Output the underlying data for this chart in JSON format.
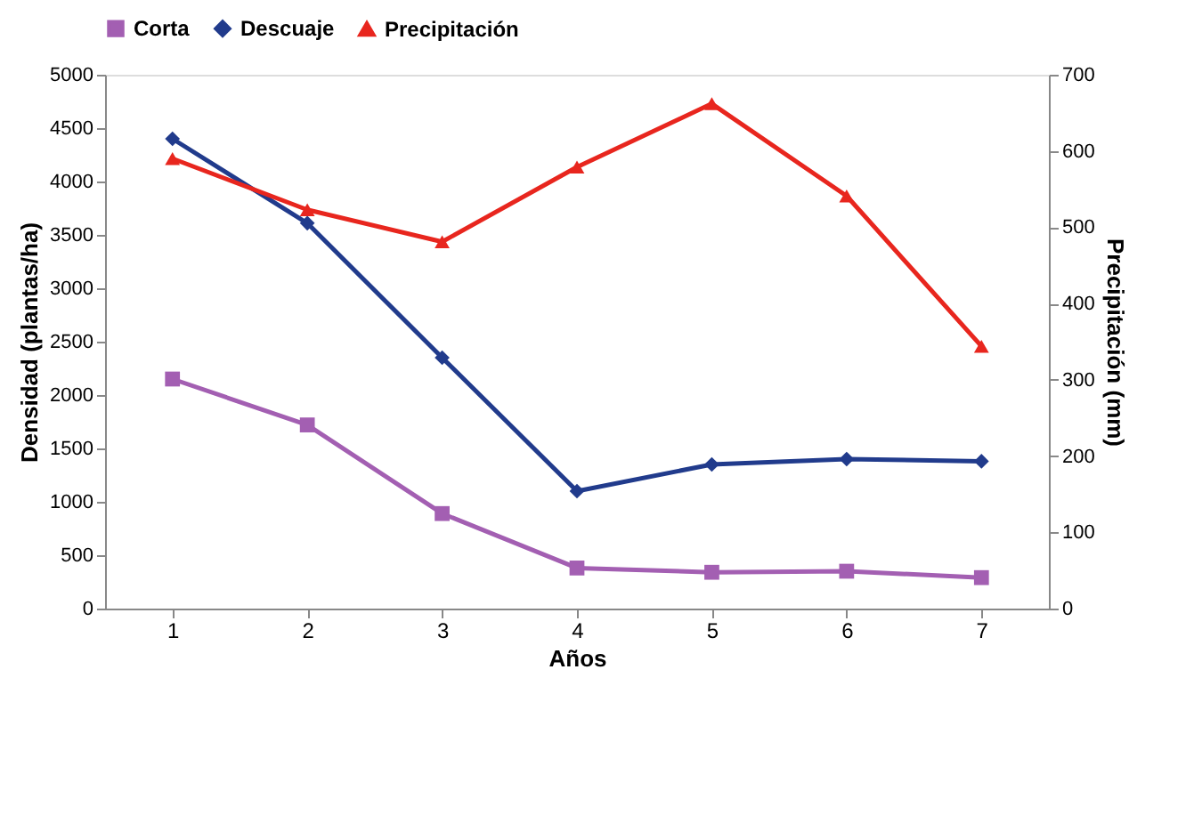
{
  "chart_data": {
    "type": "line",
    "categories": [
      "1",
      "2",
      "3",
      "4",
      "5",
      "6",
      "7"
    ],
    "xlabel": "Años",
    "ylabel": "Densidad (plantas/ha)",
    "y2label": "Precipitación (mm)",
    "ylim": [
      0,
      5000
    ],
    "yticks": [
      0,
      500,
      1000,
      1500,
      2000,
      2500,
      3000,
      3500,
      4000,
      4500,
      5000
    ],
    "y2lim": [
      0,
      700
    ],
    "y2ticks": [
      0,
      100,
      200,
      300,
      400,
      500,
      600,
      700
    ],
    "grid": false,
    "legend": "top",
    "line_style": "solid",
    "series": [
      {
        "name": "Corta",
        "color": "#a35fb2",
        "marker": "square",
        "values": [
          2150,
          1720,
          890,
          380,
          340,
          350,
          290
        ]
      },
      {
        "name": "Descuaje",
        "color": "#213b8c",
        "marker": "diamond",
        "values": [
          4400,
          3610,
          2350,
          1100,
          1350,
          1400,
          1380
        ]
      },
      {
        "name": "Precipitación",
        "color": "#e8261e",
        "marker": "triangle",
        "axis": "y2",
        "values": [
          590,
          523,
          481,
          579,
          662,
          541,
          344
        ]
      }
    ]
  }
}
